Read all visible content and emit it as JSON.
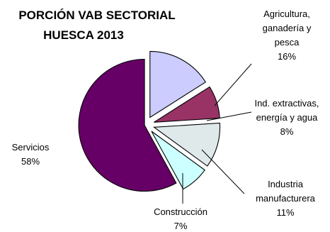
{
  "chart_data": {
    "type": "pie",
    "title": [
      "PORCIÓN VAB SECTORIAL",
      "HUESCA 2013"
    ],
    "exploded": true,
    "slices": [
      {
        "label": [
          "Agricultura,",
          "ganadería y",
          "pesca"
        ],
        "value": 16,
        "value_label": "16%",
        "color": "#ccccff"
      },
      {
        "label": [
          "Ind. extractivas,",
          "energía y agua"
        ],
        "value": 8,
        "value_label": "8%",
        "color": "#993366"
      },
      {
        "label": [
          "Industria",
          "manufacturera"
        ],
        "value": 11,
        "value_label": "11%",
        "color": "#dfe9ea"
      },
      {
        "label": [
          "Construcción"
        ],
        "value": 7,
        "value_label": "7%",
        "color": "#ccffff"
      },
      {
        "label": [
          "Servicios"
        ],
        "value": 58,
        "value_label": "58%",
        "color": "#660066"
      }
    ]
  }
}
